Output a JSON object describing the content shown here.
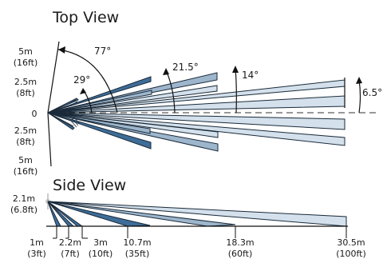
{
  "top_view": {
    "title": "Top View",
    "y_labels": {
      "plus5": "5m",
      "plus5_ft": "(16ft)",
      "plus25": "2.5m",
      "plus25_ft": "(8ft)",
      "zero": "0",
      "minus25": "2.5m",
      "minus25_ft": "(8ft)",
      "minus5": "5m",
      "minus5_ft": "(16ft)"
    },
    "angles": {
      "a77": "77°",
      "a29": "29°",
      "a215": "21.5°",
      "a14": "14°",
      "a65": "6.5°"
    }
  },
  "side_view": {
    "title": "Side View",
    "height_label": "2.1m",
    "height_label_ft": "(6.8ft)",
    "distances": [
      {
        "m": "1m",
        "ft": "(3ft)"
      },
      {
        "m": "2.2m",
        "ft": "(7ft)"
      },
      {
        "m": "3m",
        "ft": "(10ft)"
      },
      {
        "m": "10.7m",
        "ft": "(35ft)"
      },
      {
        "m": "18.3m",
        "ft": "(60ft)"
      },
      {
        "m": "30.5m",
        "ft": "(100ft)"
      }
    ]
  },
  "colors": {
    "dark_beam": "#3e6d98",
    "mid_beam": "#9db6cc",
    "light_beam": "#d4e1ec"
  }
}
